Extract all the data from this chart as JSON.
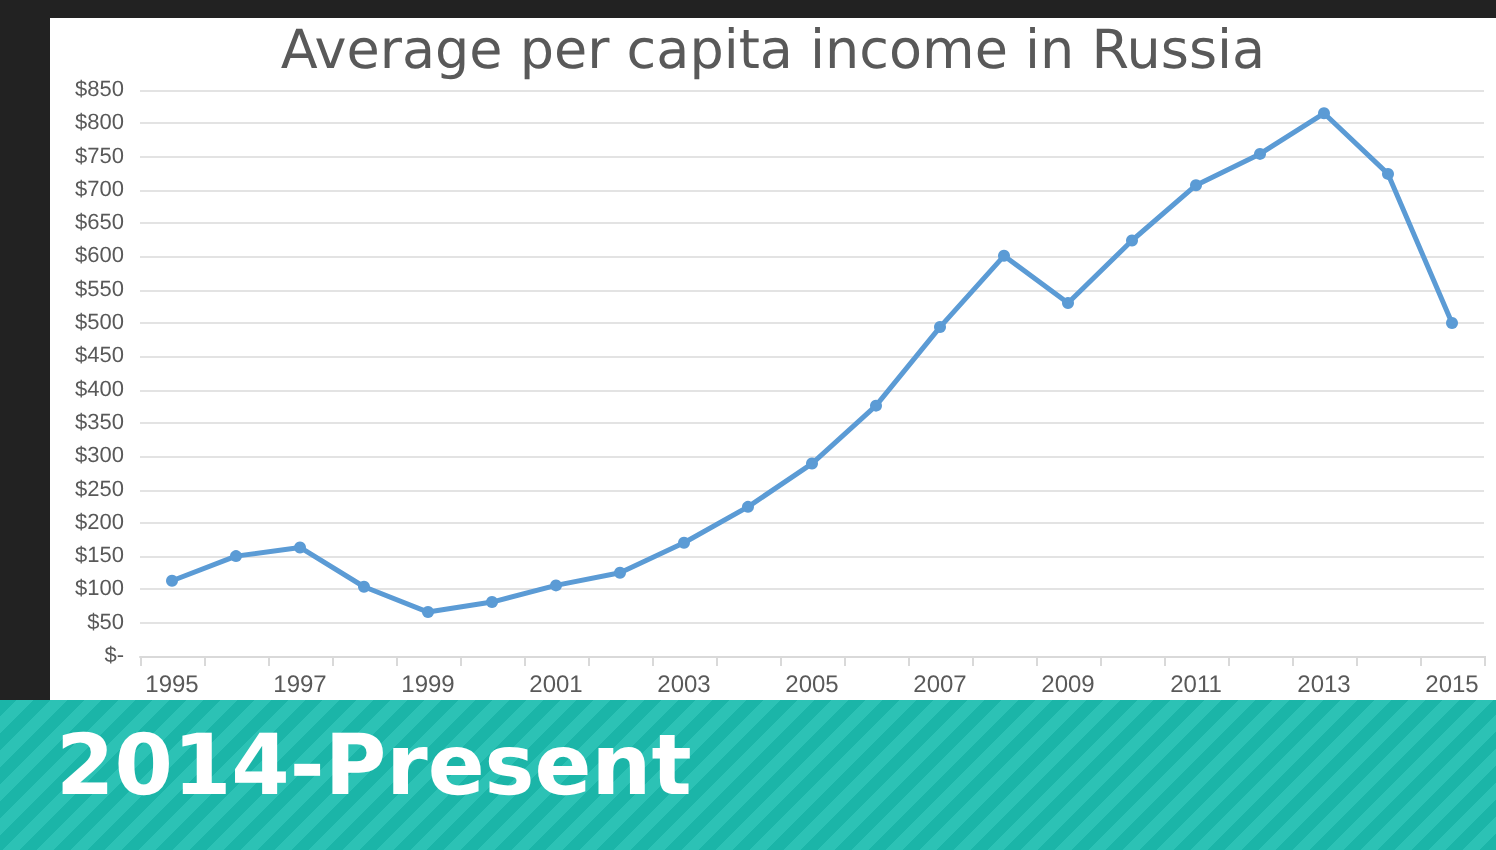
{
  "chart_data": {
    "type": "line",
    "title": "Average per capita income in Russia",
    "categories": [
      "1995",
      null,
      "1997",
      null,
      "1999",
      null,
      "2001",
      null,
      "2003",
      null,
      "2005",
      null,
      "2007",
      null,
      "2009",
      null,
      "2011",
      null,
      "2013",
      null,
      "2015"
    ],
    "series": [
      {
        "color": "#5b9bd5",
        "values": [
          113,
          150,
          163,
          104,
          66,
          81,
          106,
          125,
          170,
          224,
          289,
          376,
          494,
          601,
          530,
          624,
          707,
          754,
          815,
          724,
          500
        ]
      }
    ],
    "ylim": [
      0,
      850
    ],
    "yticks": [
      {
        "value": 0,
        "label": "$-"
      },
      {
        "value": 50,
        "label": "$50"
      },
      {
        "value": 100,
        "label": "$100"
      },
      {
        "value": 150,
        "label": "$150"
      },
      {
        "value": 200,
        "label": "$200"
      },
      {
        "value": 250,
        "label": "$250"
      },
      {
        "value": 300,
        "label": "$300"
      },
      {
        "value": 350,
        "label": "$350"
      },
      {
        "value": 400,
        "label": "$400"
      },
      {
        "value": 450,
        "label": "$450"
      },
      {
        "value": 500,
        "label": "$500"
      },
      {
        "value": 550,
        "label": "$550"
      },
      {
        "value": 600,
        "label": "$600"
      },
      {
        "value": 650,
        "label": "$650"
      },
      {
        "value": 700,
        "label": "$700"
      },
      {
        "value": 750,
        "label": "$750"
      },
      {
        "value": 800,
        "label": "$800"
      },
      {
        "value": 850,
        "label": "$850"
      }
    ],
    "grid": "y",
    "marker": "circle",
    "line_style": "solid",
    "annotations": [
      "2014-Present"
    ]
  }
}
